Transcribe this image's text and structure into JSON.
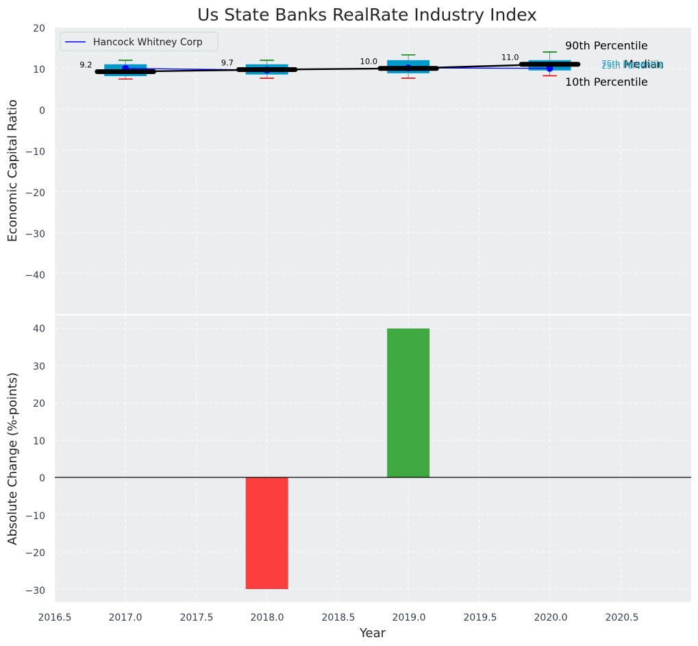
{
  "chart_data": [
    {
      "type": "box",
      "title": "Us State Banks RealRate Industry Index",
      "xlabel": "",
      "ylabel": "Economic Capital Ratio",
      "xlim": [
        2016.5,
        2021.0
      ],
      "ylim": [
        -50,
        20
      ],
      "x_ticks": [
        "2016.5",
        "2017.0",
        "2017.5",
        "2018.0",
        "2018.5",
        "2019.0",
        "2019.5",
        "2020.0",
        "2020.5"
      ],
      "y_ticks": [
        "20",
        "10",
        "0",
        "−10",
        "−20",
        "−30",
        "−40"
      ],
      "legend": {
        "position": "top-left",
        "entries": [
          "Hancock Whitney Corp"
        ]
      },
      "grid": true,
      "categories": [
        2017,
        2018,
        2019,
        2020
      ],
      "boxes": [
        {
          "x": 2017,
          "p10": 7.4,
          "p25": 8.1,
          "median": 9.2,
          "p75": 11.0,
          "p90": 12.0
        },
        {
          "x": 2018,
          "p10": 7.6,
          "p25": 8.5,
          "median": 9.7,
          "p75": 11.0,
          "p90": 12.0
        },
        {
          "x": 2019,
          "p10": 7.6,
          "p25": 8.8,
          "median": 10.0,
          "p75": 12.0,
          "p90": 13.3
        },
        {
          "x": 2020,
          "p10": 8.2,
          "p25": 9.5,
          "median": 11.0,
          "p75": 12.0,
          "p90": 14.0
        }
      ],
      "median_labels": [
        "9.2",
        "9.7",
        "10.0",
        "11.0"
      ],
      "series": [
        {
          "name": "Hancock Whitney Corp",
          "x": [
            2017,
            2018,
            2019,
            2020
          ],
          "values": [
            10.0,
            9.6,
            10.1,
            10.0
          ],
          "color": "#0000ff"
        }
      ],
      "annotations": {
        "p90": "90th Percentile",
        "median": "Median",
        "p10": "10th Percentile",
        "p75": "75th Percentile",
        "p25": "25th Percentile"
      },
      "colors": {
        "box": "#0099cc",
        "median": "#000000",
        "p90": "#008000",
        "p10": "#ff0000",
        "small_label": "#17a2c8"
      }
    },
    {
      "type": "bar",
      "title": "",
      "xlabel": "Year",
      "ylabel": "Absolute Change (%-points)",
      "xlim": [
        2016.5,
        2021.0
      ],
      "ylim": [
        -33.5,
        43.5
      ],
      "x_ticks": [
        "2016.5",
        "2017.0",
        "2017.5",
        "2018.0",
        "2018.5",
        "2019.0",
        "2019.5",
        "2020.0",
        "2020.5"
      ],
      "y_ticks": [
        "40",
        "30",
        "20",
        "10",
        "0",
        "−10",
        "−20",
        "−30"
      ],
      "grid": true,
      "categories": [
        2018,
        2019
      ],
      "values": [
        -30,
        40
      ],
      "colors": {
        "positive": "#2ca02c",
        "negative": "#ff2a2a"
      }
    }
  ]
}
